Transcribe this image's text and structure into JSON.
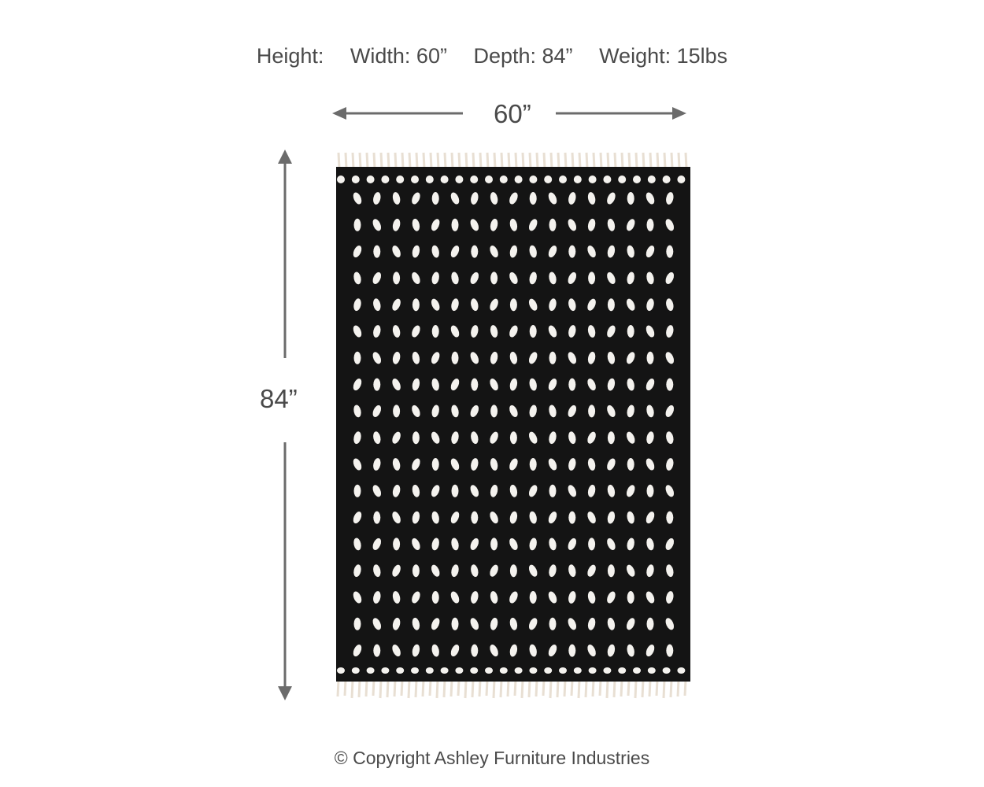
{
  "specs": {
    "height": "Height:",
    "width": "Width: 60”",
    "depth": "Depth: 84”",
    "weight": "Weight: 15lbs"
  },
  "dimensions": {
    "width_label": "60”",
    "height_label": "84”"
  },
  "rug": {
    "base_color": "#141414",
    "dot_color": "#f4f2ee",
    "fringe_color": "#e8dfd3",
    "dot_columns": 17,
    "dot_rows": 18
  },
  "arrow_color": "#6b6b6b",
  "copyright": "© Copyright Ashley Furniture Industries"
}
